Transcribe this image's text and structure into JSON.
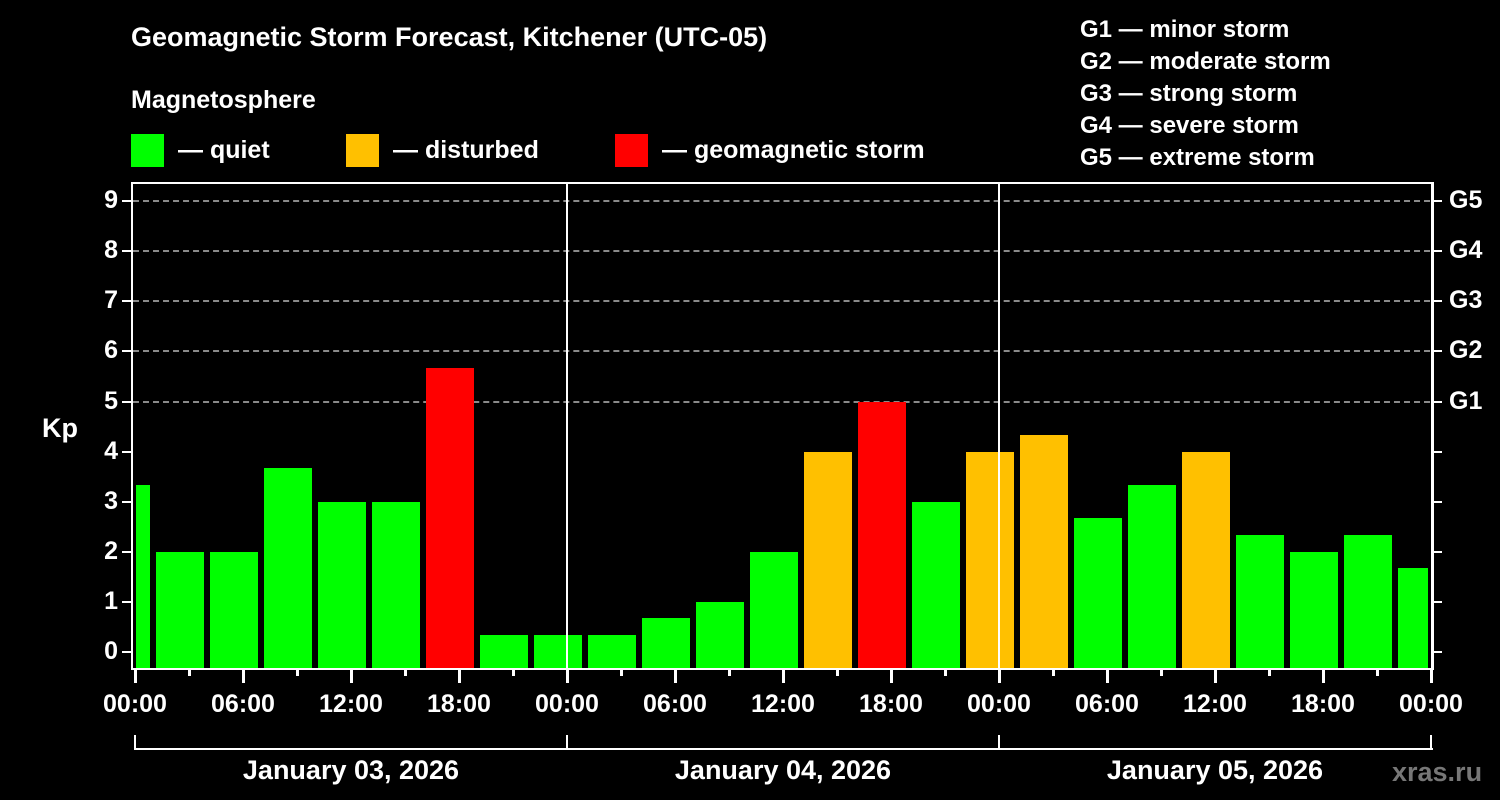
{
  "header": {
    "title": "Geomagnetic Storm Forecast, Kitchener (UTC-05)",
    "subtitle": "Magnetosphere"
  },
  "legend": [
    {
      "label": "— quiet",
      "color": "#00ff00"
    },
    {
      "label": "— disturbed",
      "color": "#ffc000"
    },
    {
      "label": "— geomagnetic storm",
      "color": "#ff0000"
    }
  ],
  "g_scale": [
    "G1 — minor storm",
    "G2 — moderate storm",
    "G3 — strong storm",
    "G4 — severe storm",
    "G5 — extreme storm"
  ],
  "axis": {
    "ylabel": "Kp",
    "watermark": "xras.ru"
  },
  "chart_data": {
    "type": "bar",
    "title": "Geomagnetic Storm Forecast, Kitchener (UTC-05)",
    "xlabel": "",
    "ylabel": "Kp",
    "ylim": [
      0,
      9
    ],
    "yticks": [
      0,
      1,
      2,
      3,
      4,
      5,
      6,
      7,
      8,
      9
    ],
    "right_ticks": [
      {
        "value": 5,
        "label": "G1"
      },
      {
        "value": 6,
        "label": "G2"
      },
      {
        "value": 7,
        "label": "G3"
      },
      {
        "value": 8,
        "label": "G4"
      },
      {
        "value": 9,
        "label": "G5"
      }
    ],
    "grid": "horizontal dashed at Kp 5-9",
    "x_tick_labels": [
      "00:00",
      "06:00",
      "12:00",
      "18:00",
      "00:00",
      "06:00",
      "12:00",
      "18:00",
      "00:00",
      "06:00",
      "12:00",
      "18:00",
      "00:00"
    ],
    "days": [
      "January 03, 2026",
      "January 04, 2026",
      "January 05, 2026"
    ],
    "bar_interval_hours": 3,
    "categories": [
      "Jan 03 ~00:00",
      "Jan 03 ~02:30",
      "Jan 03 ~05:30",
      "Jan 03 ~08:30",
      "Jan 03 ~11:30",
      "Jan 03 ~14:30",
      "Jan 03 ~17:30",
      "Jan 03 ~20:30",
      "Jan 03 ~23:30",
      "Jan 04 ~02:30",
      "Jan 04 ~05:30",
      "Jan 04 ~08:30",
      "Jan 04 ~11:30",
      "Jan 04 ~14:30",
      "Jan 04 ~17:30",
      "Jan 04 ~20:30",
      "Jan 04 ~23:30",
      "Jan 05 ~02:30",
      "Jan 05 ~05:30",
      "Jan 05 ~08:30",
      "Jan 05 ~11:30",
      "Jan 05 ~14:30",
      "Jan 05 ~17:30",
      "Jan 05 ~20:30",
      "Jan 05 ~23:30"
    ],
    "values": [
      3.33,
      2.0,
      2.0,
      3.67,
      3.0,
      3.0,
      5.67,
      0.33,
      0.33,
      0.33,
      0.67,
      1.0,
      2.0,
      4.0,
      5.0,
      3.0,
      4.0,
      4.33,
      2.67,
      3.33,
      4.0,
      2.33,
      2.0,
      2.33,
      1.67
    ],
    "status": [
      "quiet",
      "quiet",
      "quiet",
      "quiet",
      "quiet",
      "quiet",
      "storm",
      "quiet",
      "quiet",
      "quiet",
      "quiet",
      "quiet",
      "quiet",
      "disturbed",
      "storm",
      "quiet",
      "disturbed",
      "disturbed",
      "quiet",
      "quiet",
      "disturbed",
      "quiet",
      "quiet",
      "quiet",
      "quiet"
    ],
    "colors": {
      "quiet": "#00ff00",
      "disturbed": "#ffc000",
      "storm": "#ff0000"
    },
    "legend": [
      "quiet",
      "disturbed",
      "geomagnetic storm"
    ]
  }
}
